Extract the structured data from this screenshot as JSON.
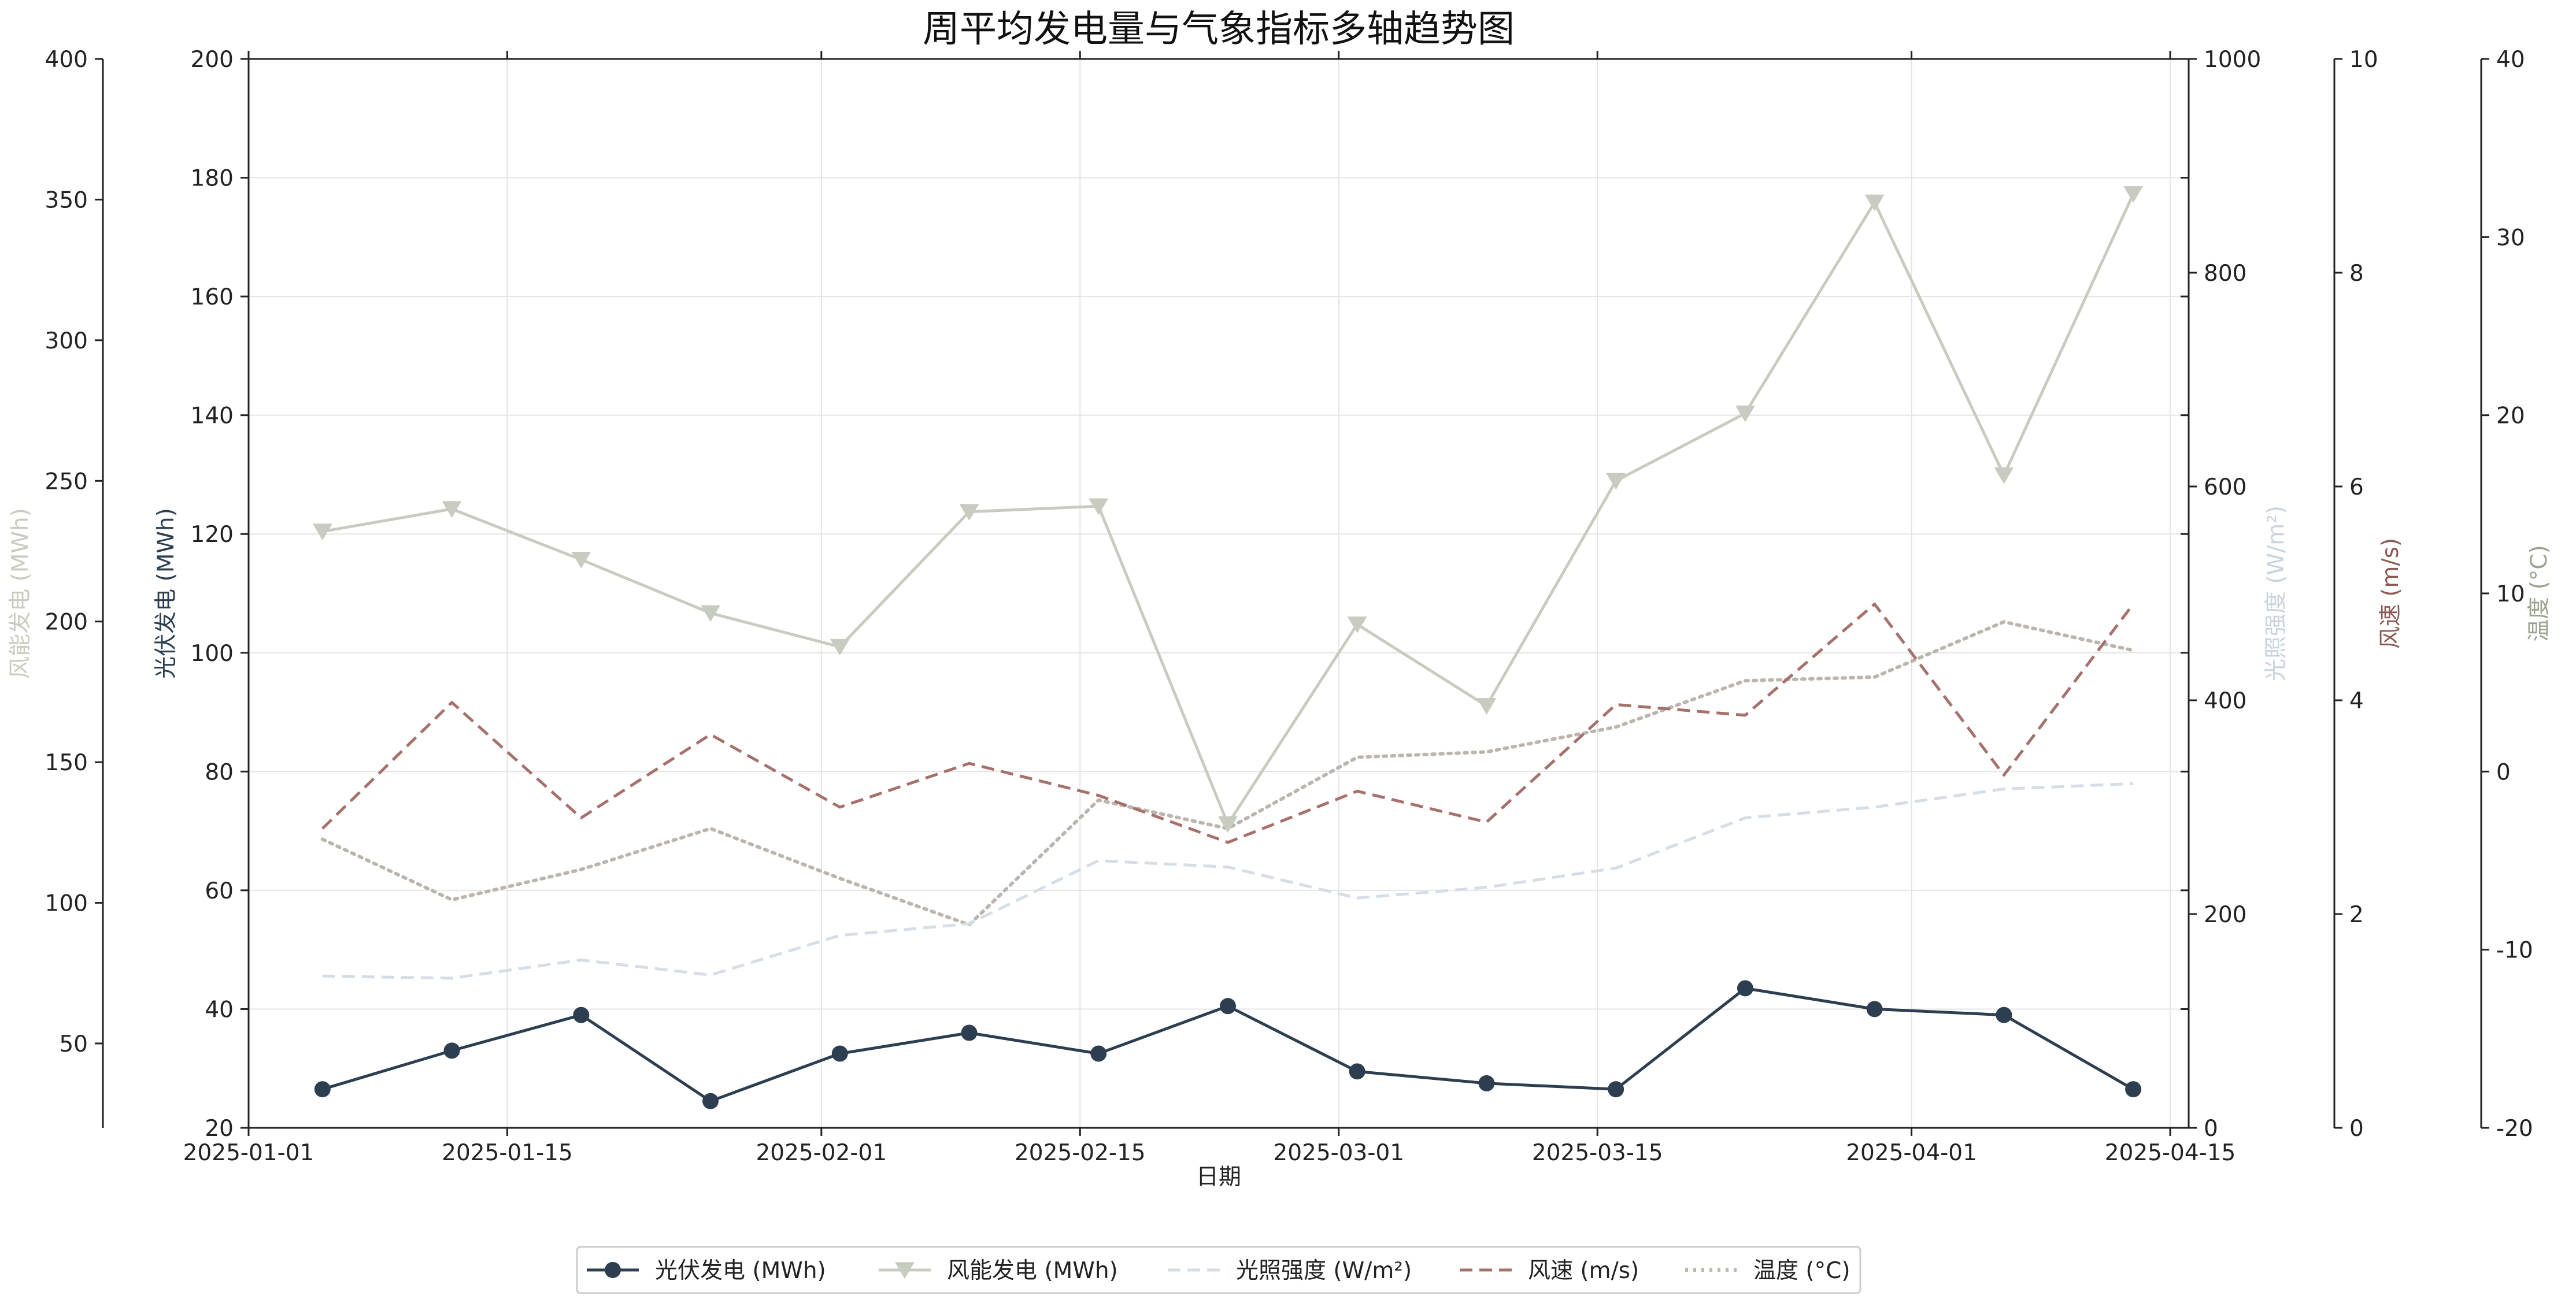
{
  "chart_data": {
    "type": "line",
    "title": "周平均发电量与气象指标多轴趋势图",
    "xlabel": "日期",
    "x_range": [
      "2025-01-01",
      "2025-04-16"
    ],
    "x_tick_labels": [
      "2025-01-01",
      "2025-01-15",
      "2025-02-01",
      "2025-02-15",
      "2025-03-01",
      "2025-03-15",
      "2025-04-01",
      "2025-04-15"
    ],
    "x_tick_dates": [
      "2025-01-01",
      "2025-01-15",
      "2025-02-01",
      "2025-02-15",
      "2025-03-01",
      "2025-03-15",
      "2025-04-01",
      "2025-04-15"
    ],
    "dates": [
      "2025-01-05",
      "2025-01-12",
      "2025-01-19",
      "2025-01-26",
      "2025-02-02",
      "2025-02-09",
      "2025-02-16",
      "2025-02-23",
      "2025-03-02",
      "2025-03-09",
      "2025-03-16",
      "2025-03-23",
      "2025-03-30",
      "2025-04-06",
      "2025-04-13"
    ],
    "grid": true,
    "legend_position": "bottom-center",
    "axes": [
      {
        "id": "pv",
        "label": "光伏发电 (MWh)",
        "ylim": [
          20,
          200
        ],
        "ticks": [
          "20",
          "40",
          "60",
          "80",
          "100",
          "120",
          "140",
          "160",
          "180",
          "200"
        ],
        "color": "#2c3e50"
      },
      {
        "id": "wind",
        "label": "风能发电 (MWh)",
        "ylim": [
          20,
          400
        ],
        "ticks": [
          "50",
          "100",
          "150",
          "200",
          "250",
          "300",
          "350",
          "400"
        ],
        "color": "#c8cbbf"
      },
      {
        "id": "irr",
        "label": "光照强度 (W/m²)",
        "ylim": [
          0,
          1000
        ],
        "ticks": [
          "0",
          "200",
          "400",
          "600",
          "800",
          "1000"
        ],
        "color": "#c9d3de"
      },
      {
        "id": "ws",
        "label": "风速 (m/s)",
        "ylim": [
          0,
          10
        ],
        "ticks": [
          "0",
          "2",
          "4",
          "6",
          "8",
          "10"
        ],
        "color": "#8a5a55"
      },
      {
        "id": "temp",
        "label": "温度 (°C)",
        "ylim": [
          -20,
          40
        ],
        "ticks": [
          "-20",
          "-10",
          "0",
          "10",
          "20",
          "30",
          "40"
        ],
        "color": "#9aa38f"
      }
    ],
    "series": [
      {
        "name": "光伏发电 (MWh)",
        "axis": "pv",
        "color": "#2c3e50",
        "style": "solid",
        "marker": "circle",
        "values": [
          26.5,
          33.0,
          39.0,
          24.5,
          32.5,
          36.0,
          32.5,
          40.5,
          29.5,
          27.5,
          26.5,
          43.5,
          40.0,
          39.0,
          26.5
        ]
      },
      {
        "name": "风能发电 (MWh)",
        "axis": "wind",
        "color": "#c8cbbf",
        "style": "solid",
        "marker": "triangle-down",
        "values": [
          232,
          240,
          222,
          203,
          191,
          239,
          241,
          128,
          199,
          170,
          250,
          274,
          349,
          252,
          352
        ]
      },
      {
        "name": "光照强度 (W/m²)",
        "axis": "irr",
        "color": "#d5dde6",
        "style": "dashed",
        "marker": "none",
        "values": [
          142,
          140,
          157,
          143,
          180,
          191,
          250,
          244,
          215,
          225,
          243,
          290,
          300,
          317,
          322
        ]
      },
      {
        "name": "风速 (m/s)",
        "axis": "ws",
        "color": "#a6706b",
        "style": "dashed",
        "marker": "none",
        "values": [
          2.8,
          3.98,
          2.9,
          3.68,
          3.0,
          3.41,
          3.11,
          2.67,
          3.15,
          2.86,
          3.96,
          3.86,
          4.9,
          3.3,
          4.9
        ]
      },
      {
        "name": "温度 (°C)",
        "axis": "temp",
        "color": "#bbb5ad",
        "style": "dotted",
        "marker": "none",
        "values": [
          -3.8,
          -7.2,
          -5.5,
          -3.2,
          -6.0,
          -8.6,
          -1.6,
          -3.2,
          0.8,
          1.1,
          2.5,
          5.1,
          5.3,
          8.4,
          6.8
        ]
      }
    ]
  }
}
